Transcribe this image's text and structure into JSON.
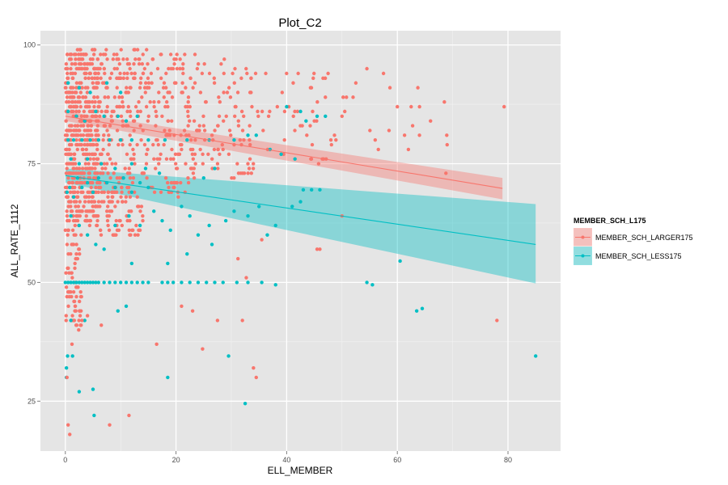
{
  "chart_data": {
    "type": "scatter",
    "title": "Plot_C2",
    "xlabel": "ELL_MEMBER",
    "ylabel": "ALL_RATE_1112",
    "xlim": [
      -4.5,
      89.5
    ],
    "ylim": [
      14.5,
      103
    ],
    "x_ticks": [
      0,
      20,
      40,
      60,
      80
    ],
    "y_ticks": [
      25,
      50,
      75,
      100
    ],
    "grid": true,
    "legend": {
      "title": "MEMBER_SCH_L175",
      "placement": "right"
    },
    "series": [
      {
        "name": "MEMBER_SCH_LARGER175",
        "color": "#F8766D",
        "fit": {
          "x": [
            0,
            79
          ],
          "y": [
            85.0,
            69.8
          ],
          "ci_low": [
            84.0,
            67.5
          ],
          "ci_high": [
            86.0,
            72.0
          ]
        },
        "clusters": [
          {
            "x0": 0,
            "x1": 6,
            "y0": 62,
            "y1": 99,
            "n": 520
          },
          {
            "x0": 0,
            "x1": 3,
            "y0": 40,
            "y1": 62,
            "n": 70
          },
          {
            "x0": 6,
            "x1": 14,
            "y0": 60,
            "y1": 99,
            "n": 260
          },
          {
            "x0": 14,
            "x1": 24,
            "y0": 68,
            "y1": 99,
            "n": 170
          },
          {
            "x0": 24,
            "x1": 34,
            "y0": 72,
            "y1": 97,
            "n": 90
          },
          {
            "x0": 34,
            "x1": 48,
            "y0": 75,
            "y1": 95,
            "n": 45
          },
          {
            "x0": 48,
            "x1": 70,
            "y0": 73,
            "y1": 94,
            "n": 16
          }
        ],
        "points": [
          [
            0.3,
            30
          ],
          [
            0.5,
            20
          ],
          [
            0.8,
            18
          ],
          [
            1.2,
            37
          ],
          [
            1.8,
            45
          ],
          [
            2.0,
            47
          ],
          [
            3.0,
            42
          ],
          [
            4.0,
            43
          ],
          [
            6.5,
            41
          ],
          [
            8.0,
            20
          ],
          [
            11.5,
            22
          ],
          [
            16.5,
            37
          ],
          [
            21.0,
            45
          ],
          [
            23.0,
            44
          ],
          [
            24.8,
            36
          ],
          [
            27.5,
            42
          ],
          [
            31.2,
            55
          ],
          [
            32.0,
            42
          ],
          [
            32.7,
            51
          ],
          [
            34.0,
            32
          ],
          [
            34.5,
            30
          ],
          [
            35.5,
            59
          ],
          [
            45.5,
            57
          ],
          [
            46.0,
            57
          ],
          [
            50.0,
            64
          ],
          [
            78.0,
            42
          ],
          [
            79.3,
            87
          ],
          [
            69.0,
            79
          ],
          [
            68.5,
            88
          ],
          [
            58.5,
            82
          ],
          [
            57.5,
            94
          ],
          [
            64.0,
            81
          ],
          [
            54.5,
            95
          ],
          [
            45.0,
            84
          ],
          [
            50.5,
            86
          ],
          [
            52.0,
            89
          ],
          [
            52.5,
            92
          ],
          [
            56.0,
            80
          ],
          [
            60.0,
            87
          ],
          [
            62.0,
            78
          ],
          [
            66.0,
            84
          ]
        ]
      },
      {
        "name": "MEMBER_SCH_LESS175",
        "color": "#00BFC4",
        "fit": {
          "x": [
            0,
            85
          ],
          "y": [
            72.5,
            58.0
          ],
          "ci_low": [
            71.0,
            49.8
          ],
          "ci_high": [
            74.0,
            66.5
          ]
        },
        "points": [
          [
            0,
            50
          ],
          [
            0.5,
            50
          ],
          [
            1,
            50
          ],
          [
            1.5,
            50
          ],
          [
            2,
            50
          ],
          [
            2.5,
            50
          ],
          [
            3,
            50
          ],
          [
            3.5,
            50
          ],
          [
            4,
            50
          ],
          [
            4.5,
            50
          ],
          [
            5,
            50
          ],
          [
            5.5,
            50
          ],
          [
            6,
            50
          ],
          [
            7,
            50
          ],
          [
            8,
            50
          ],
          [
            9,
            50
          ],
          [
            10,
            50
          ],
          [
            11,
            50
          ],
          [
            12,
            50
          ],
          [
            13,
            50
          ],
          [
            14,
            50
          ],
          [
            15,
            50
          ],
          [
            17.5,
            50
          ],
          [
            18.5,
            50
          ],
          [
            19.5,
            50
          ],
          [
            21,
            50
          ],
          [
            22.5,
            50
          ],
          [
            24,
            50
          ],
          [
            25.5,
            50
          ],
          [
            27,
            50
          ],
          [
            28.5,
            50
          ],
          [
            31,
            50
          ],
          [
            33,
            50
          ],
          [
            35.5,
            50
          ],
          [
            38,
            49.5
          ],
          [
            54.5,
            50
          ],
          [
            55.5,
            49.5
          ],
          [
            0.2,
            32
          ],
          [
            0.2,
            30
          ],
          [
            0.4,
            34.5
          ],
          [
            1.0,
            42
          ],
          [
            1.3,
            34.5
          ],
          [
            2.5,
            27
          ],
          [
            3.5,
            42
          ],
          [
            5.0,
            27.5
          ],
          [
            5.2,
            22
          ],
          [
            9.5,
            44
          ],
          [
            18.5,
            30
          ],
          [
            29.5,
            34.5
          ],
          [
            32.5,
            24.5
          ],
          [
            60.5,
            54.5
          ],
          [
            63.5,
            44
          ],
          [
            64.5,
            44.5
          ],
          [
            85,
            34.5
          ],
          [
            0.3,
            69
          ],
          [
            0.8,
            70
          ],
          [
            1.5,
            68
          ],
          [
            2.2,
            72
          ],
          [
            3.0,
            70
          ],
          [
            4.0,
            71
          ],
          [
            5.0,
            69
          ],
          [
            6.0,
            72
          ],
          [
            7.5,
            71
          ],
          [
            9.0,
            70
          ],
          [
            10.5,
            72
          ],
          [
            12.0,
            69
          ],
          [
            13.5,
            71
          ],
          [
            15.0,
            70
          ],
          [
            0.5,
            80
          ],
          [
            1.5,
            80
          ],
          [
            3.0,
            80
          ],
          [
            4.5,
            80
          ],
          [
            6.0,
            80
          ],
          [
            8.0,
            80
          ],
          [
            10.0,
            80
          ],
          [
            12.0,
            80
          ],
          [
            15.0,
            80
          ],
          [
            18.0,
            80
          ],
          [
            22.0,
            80
          ],
          [
            26.0,
            80
          ],
          [
            30.5,
            80
          ],
          [
            1.0,
            76
          ],
          [
            2.5,
            75
          ],
          [
            4.0,
            76
          ],
          [
            6.5,
            75
          ],
          [
            9.0,
            74
          ],
          [
            12.0,
            75
          ],
          [
            14.5,
            74
          ],
          [
            17.0,
            73
          ],
          [
            0.5,
            86
          ],
          [
            2.0,
            85
          ],
          [
            3.5,
            84
          ],
          [
            5.5,
            86
          ],
          [
            7.0,
            85
          ],
          [
            9.5,
            85
          ],
          [
            11.0,
            84
          ],
          [
            13.0,
            85
          ],
          [
            0.5,
            92
          ],
          [
            2.5,
            91
          ],
          [
            4.5,
            90
          ],
          [
            7.5,
            92
          ],
          [
            10.0,
            90
          ],
          [
            1.0,
            64
          ],
          [
            2.5,
            62
          ],
          [
            4.0,
            60
          ],
          [
            5.5,
            58
          ],
          [
            7.0,
            57
          ],
          [
            9.0,
            62
          ],
          [
            11.5,
            64
          ],
          [
            13.5,
            62
          ],
          [
            16.0,
            65
          ],
          [
            17.5,
            63
          ],
          [
            19.0,
            61
          ],
          [
            21.0,
            66
          ],
          [
            22.5,
            64
          ],
          [
            24.0,
            60
          ],
          [
            26.0,
            62
          ],
          [
            29.0,
            63
          ],
          [
            30.5,
            65
          ],
          [
            33.0,
            64
          ],
          [
            35.0,
            66
          ],
          [
            36.5,
            60
          ],
          [
            38.0,
            62
          ],
          [
            41.0,
            66
          ],
          [
            42.5,
            67
          ],
          [
            43.0,
            69.5
          ],
          [
            44.5,
            69.5
          ],
          [
            46.0,
            69.5
          ],
          [
            47.0,
            85
          ],
          [
            45.5,
            85
          ],
          [
            43.5,
            84
          ],
          [
            42.5,
            86
          ],
          [
            40.0,
            87
          ],
          [
            33.0,
            81
          ],
          [
            34.5,
            81
          ],
          [
            37.0,
            78
          ],
          [
            39.0,
            77
          ],
          [
            41.5,
            76
          ],
          [
            26.5,
            58
          ],
          [
            22.0,
            56
          ],
          [
            18.5,
            54
          ],
          [
            11.0,
            45
          ],
          [
            12.0,
            54
          ],
          [
            25.0,
            72
          ],
          [
            27.0,
            74
          ]
        ]
      }
    ]
  }
}
